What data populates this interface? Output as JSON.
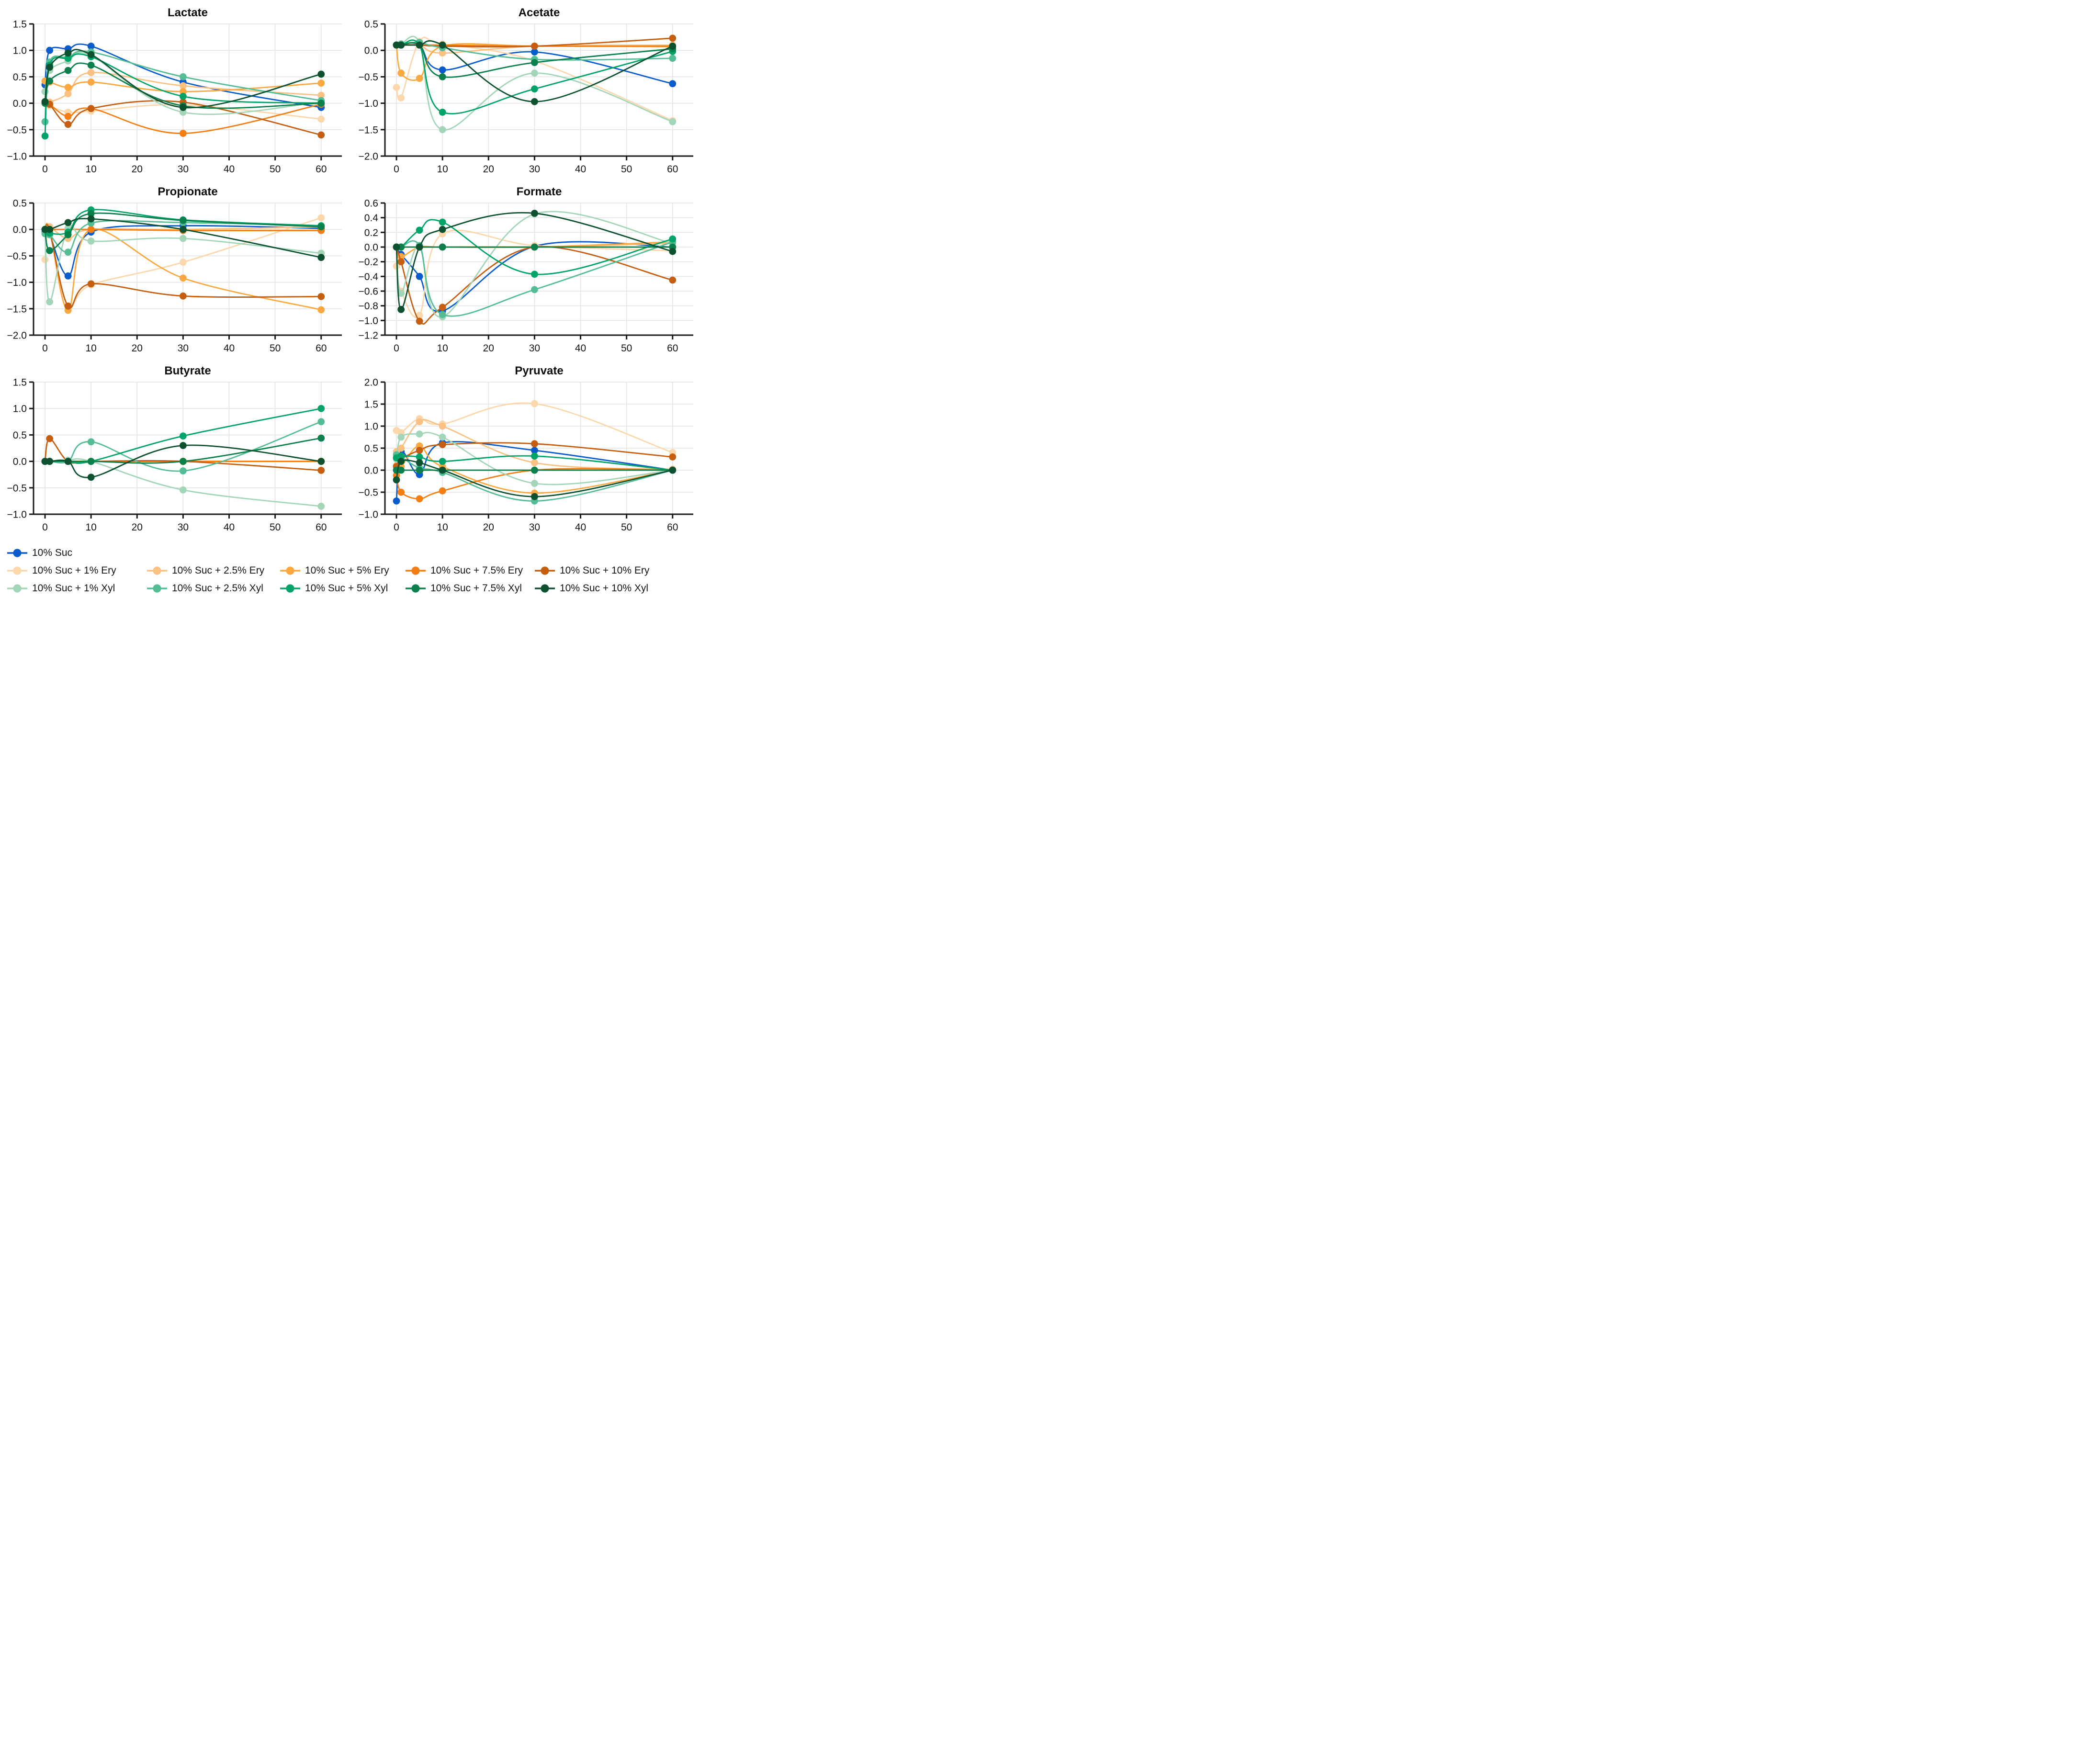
{
  "figure": {
    "kind": "small-multiples line figure",
    "x_time_points": [
      0,
      1,
      5,
      10,
      30,
      60
    ],
    "xticks": [
      0,
      10,
      20,
      30,
      40,
      50,
      60
    ]
  },
  "series_defs": [
    {
      "key": "suc10",
      "label": "10% Suc",
      "color": "#0a5bcb"
    },
    {
      "key": "ery1",
      "label": "10% Suc + 1% Ery",
      "color": "#fcd7ac"
    },
    {
      "key": "ery2_5",
      "label": "10% Suc + 2.5% Ery",
      "color": "#fac182"
    },
    {
      "key": "ery5",
      "label": "10% Suc + 5% Ery",
      "color": "#faa83f"
    },
    {
      "key": "ery7_5",
      "label": "10% Suc + 7.5% Ery",
      "color": "#f27e14"
    },
    {
      "key": "ery10",
      "label": "10% Suc + 10% Ery",
      "color": "#c55e11"
    },
    {
      "key": "xyl1",
      "label": "10% Suc + 1% Xyl",
      "color": "#a3d5b9"
    },
    {
      "key": "xyl2_5",
      "label": "10% Suc + 2.5% Xyl",
      "color": "#54bd95"
    },
    {
      "key": "xyl5",
      "label": "10% Suc + 5% Xyl",
      "color": "#00a468"
    },
    {
      "key": "xyl7_5",
      "label": "10% Suc + 7.5% Xyl",
      "color": "#0b804c"
    },
    {
      "key": "xyl10",
      "label": "10% Suc + 10% Xyl",
      "color": "#0d5130"
    }
  ],
  "legend": {
    "rows": [
      [
        "suc10"
      ],
      [
        "ery1",
        "ery2_5",
        "ery5",
        "ery7_5",
        "ery10"
      ],
      [
        "xyl1",
        "xyl2_5",
        "xyl5",
        "xyl7_5",
        "xyl10"
      ]
    ]
  },
  "style": {
    "grid_color": "#e4e4e4",
    "spine_color": "#1a1a1a",
    "tick_text_color": "#141414",
    "plot_bg": "#ffffff"
  },
  "chart_data": [
    {
      "type": "line",
      "title": "Lactate",
      "x": [
        0,
        1,
        5,
        10,
        30,
        60
      ],
      "xticks": [
        0,
        10,
        20,
        30,
        40,
        50,
        60
      ],
      "ylim": [
        -1.0,
        1.5
      ],
      "yticks": [
        -1.0,
        -0.5,
        0.0,
        0.5,
        1.0,
        1.5
      ],
      "grid": true,
      "series": [
        {
          "key": "suc10",
          "values": [
            0.35,
            1.0,
            1.03,
            1.08,
            0.4,
            -0.08
          ]
        },
        {
          "key": "ery1",
          "values": [
            0.0,
            -0.05,
            -0.17,
            -0.15,
            -0.03,
            -0.3
          ]
        },
        {
          "key": "ery2_5",
          "values": [
            0.0,
            0.02,
            0.18,
            0.58,
            0.33,
            0.15
          ]
        },
        {
          "key": "ery5",
          "values": [
            0.42,
            0.4,
            0.3,
            0.4,
            0.22,
            0.38
          ]
        },
        {
          "key": "ery7_5",
          "values": [
            0.0,
            -0.02,
            -0.25,
            -0.1,
            -0.57,
            -0.02
          ]
        },
        {
          "key": "ery10",
          "values": [
            0.02,
            -0.02,
            -0.4,
            -0.1,
            0.02,
            -0.6
          ]
        },
        {
          "key": "xyl1",
          "values": [
            0.22,
            0.62,
            0.8,
            0.9,
            -0.17,
            0.02
          ]
        },
        {
          "key": "xyl2_5",
          "values": [
            -0.35,
            0.78,
            0.87,
            0.97,
            0.5,
            0.05
          ]
        },
        {
          "key": "xyl5",
          "values": [
            -0.62,
            0.72,
            0.85,
            0.88,
            0.13,
            0.0
          ]
        },
        {
          "key": "xyl7_5",
          "values": [
            0.0,
            0.42,
            0.62,
            0.72,
            -0.05,
            0.0
          ]
        },
        {
          "key": "xyl10",
          "values": [
            0.03,
            0.68,
            0.95,
            0.92,
            -0.08,
            0.55
          ]
        }
      ]
    },
    {
      "type": "line",
      "title": "Acetate",
      "x": [
        0,
        1,
        5,
        10,
        30,
        60
      ],
      "xticks": [
        0,
        10,
        20,
        30,
        40,
        50,
        60
      ],
      "ylim": [
        -2.0,
        0.5
      ],
      "yticks": [
        -2.0,
        -1.5,
        -1.0,
        -0.5,
        0.0,
        0.5
      ],
      "grid": true,
      "series": [
        {
          "key": "suc10",
          "values": [
            0.1,
            0.12,
            0.1,
            -0.37,
            -0.03,
            -0.63
          ]
        },
        {
          "key": "ery1",
          "values": [
            -0.7,
            -0.9,
            0.17,
            0.12,
            -0.2,
            -1.33
          ]
        },
        {
          "key": "ery2_5",
          "values": [
            0.1,
            0.1,
            0.1,
            -0.05,
            0.08,
            0.1
          ]
        },
        {
          "key": "ery5",
          "values": [
            0.1,
            -0.43,
            -0.53,
            0.08,
            0.08,
            0.07
          ]
        },
        {
          "key": "ery7_5",
          "values": [
            0.1,
            0.1,
            0.1,
            0.1,
            0.08,
            0.08
          ]
        },
        {
          "key": "ery10",
          "values": [
            0.1,
            0.1,
            0.1,
            0.08,
            0.08,
            0.23
          ]
        },
        {
          "key": "xyl1",
          "values": [
            0.1,
            0.12,
            0.15,
            -1.5,
            -0.43,
            -1.35
          ]
        },
        {
          "key": "xyl2_5",
          "values": [
            0.1,
            0.12,
            0.15,
            0.05,
            -0.17,
            -0.15
          ]
        },
        {
          "key": "xyl5",
          "values": [
            0.1,
            0.1,
            0.1,
            -1.17,
            -0.73,
            -0.02
          ]
        },
        {
          "key": "xyl7_5",
          "values": [
            0.1,
            0.1,
            0.1,
            -0.5,
            -0.23,
            0.03
          ]
        },
        {
          "key": "xyl10",
          "values": [
            0.1,
            0.1,
            0.1,
            0.1,
            -0.97,
            0.08
          ]
        }
      ]
    },
    {
      "type": "line",
      "title": "Propionate",
      "x": [
        0,
        1,
        5,
        10,
        30,
        60
      ],
      "xticks": [
        0,
        10,
        20,
        30,
        40,
        50,
        60
      ],
      "ylim": [
        -2.0,
        0.5
      ],
      "yticks": [
        -2.0,
        -1.5,
        -1.0,
        -0.5,
        0.0,
        0.5
      ],
      "grid": true,
      "series": [
        {
          "key": "suc10",
          "values": [
            -0.05,
            -0.1,
            -0.88,
            -0.05,
            0.07,
            0.02
          ]
        },
        {
          "key": "ery1",
          "values": [
            -0.57,
            -0.1,
            -1.45,
            -1.05,
            -0.62,
            0.22
          ]
        },
        {
          "key": "ery2_5",
          "values": [
            0.0,
            0.05,
            -0.17,
            0.0,
            0.0,
            0.05
          ]
        },
        {
          "key": "ery5",
          "values": [
            0.0,
            0.0,
            -1.53,
            0.0,
            -0.92,
            -1.52
          ]
        },
        {
          "key": "ery7_5",
          "values": [
            0.0,
            0.0,
            0.0,
            0.0,
            -0.02,
            -0.02
          ]
        },
        {
          "key": "ery10",
          "values": [
            0.0,
            -0.02,
            -1.45,
            -1.03,
            -1.26,
            -1.27
          ]
        },
        {
          "key": "xyl1",
          "values": [
            0.0,
            -1.37,
            0.02,
            -0.22,
            -0.17,
            -0.45
          ]
        },
        {
          "key": "xyl2_5",
          "values": [
            -0.08,
            -0.1,
            -0.43,
            0.12,
            0.13,
            0.07
          ]
        },
        {
          "key": "xyl5",
          "values": [
            0.0,
            -0.07,
            -0.05,
            0.37,
            0.18,
            0.07
          ]
        },
        {
          "key": "xyl7_5",
          "values": [
            0.0,
            -0.4,
            -0.1,
            0.3,
            0.17,
            0.05
          ]
        },
        {
          "key": "xyl10",
          "values": [
            0.0,
            0.0,
            0.13,
            0.2,
            0.0,
            -0.53
          ]
        }
      ]
    },
    {
      "type": "line",
      "title": "Formate",
      "x": [
        0,
        1,
        5,
        10,
        30,
        60
      ],
      "xticks": [
        0,
        10,
        20,
        30,
        40,
        50,
        60
      ],
      "ylim": [
        -1.2,
        0.6
      ],
      "yticks": [
        -1.2,
        -1.0,
        -0.8,
        -0.6,
        -0.4,
        -0.2,
        0.0,
        0.2,
        0.4,
        0.6
      ],
      "grid": true,
      "series": [
        {
          "key": "suc10",
          "values": [
            0.0,
            -0.1,
            -0.4,
            -0.87,
            0.01,
            0.0
          ]
        },
        {
          "key": "ery1",
          "values": [
            -0.26,
            -0.6,
            -0.93,
            0.18,
            0.02,
            -0.05
          ]
        },
        {
          "key": "ery2_5",
          "values": [
            0.0,
            0.0,
            0.0,
            0.0,
            0.0,
            0.05
          ]
        },
        {
          "key": "ery5",
          "values": [
            0.0,
            -0.13,
            0.0,
            0.0,
            0.0,
            0.07
          ]
        },
        {
          "key": "ery7_5",
          "values": [
            0.0,
            0.0,
            0.0,
            0.0,
            0.0,
            0.0
          ]
        },
        {
          "key": "ery10",
          "values": [
            0.0,
            -0.2,
            -1.01,
            -0.82,
            0.0,
            -0.45
          ]
        },
        {
          "key": "xyl1",
          "values": [
            0.0,
            -0.63,
            0.02,
            -0.95,
            0.45,
            0.05
          ]
        },
        {
          "key": "xyl2_5",
          "values": [
            0.0,
            0.0,
            0.02,
            -0.92,
            -0.58,
            0.07
          ]
        },
        {
          "key": "xyl5",
          "values": [
            0.0,
            0.0,
            0.23,
            0.34,
            -0.37,
            0.11
          ]
        },
        {
          "key": "xyl7_5",
          "values": [
            0.0,
            0.0,
            0.0,
            0.0,
            0.0,
            0.0
          ]
        },
        {
          "key": "xyl10",
          "values": [
            0.0,
            -0.85,
            0.0,
            0.24,
            0.46,
            -0.06
          ]
        }
      ]
    },
    {
      "type": "line",
      "title": "Butyrate",
      "x": [
        0,
        1,
        5,
        10,
        30,
        60
      ],
      "xticks": [
        0,
        10,
        20,
        30,
        40,
        50,
        60
      ],
      "ylim": [
        -1.0,
        1.5
      ],
      "yticks": [
        -1.0,
        -0.5,
        0.0,
        0.5,
        1.0,
        1.5
      ],
      "grid": true,
      "series": [
        {
          "key": "suc10",
          "values": [
            0.0,
            0.0,
            0.0,
            0.0,
            0.0,
            0.0
          ]
        },
        {
          "key": "ery1",
          "values": [
            0.0,
            0.0,
            0.0,
            0.0,
            0.0,
            0.0
          ]
        },
        {
          "key": "ery2_5",
          "values": [
            0.0,
            0.0,
            0.0,
            0.0,
            0.0,
            0.0
          ]
        },
        {
          "key": "ery5",
          "values": [
            0.0,
            0.0,
            0.0,
            0.0,
            0.0,
            0.0
          ]
        },
        {
          "key": "ery7_5",
          "values": [
            0.0,
            0.0,
            0.0,
            0.0,
            0.0,
            0.0
          ]
        },
        {
          "key": "ery10",
          "values": [
            0.0,
            0.43,
            0.0,
            0.0,
            0.0,
            -0.17
          ]
        },
        {
          "key": "xyl1",
          "values": [
            0.0,
            0.0,
            0.02,
            0.0,
            -0.54,
            -0.85
          ]
        },
        {
          "key": "xyl2_5",
          "values": [
            0.0,
            0.0,
            0.0,
            0.37,
            -0.18,
            0.75
          ]
        },
        {
          "key": "xyl5",
          "values": [
            0.0,
            0.0,
            0.0,
            0.0,
            0.48,
            1.0
          ]
        },
        {
          "key": "xyl7_5",
          "values": [
            0.0,
            0.0,
            0.0,
            0.0,
            0.0,
            0.44
          ]
        },
        {
          "key": "xyl10",
          "values": [
            0.0,
            0.0,
            0.0,
            -0.3,
            0.3,
            0.0
          ]
        }
      ]
    },
    {
      "type": "line",
      "title": "Pyruvate",
      "x": [
        0,
        1,
        5,
        10,
        30,
        60
      ],
      "xticks": [
        0,
        10,
        20,
        30,
        40,
        50,
        60
      ],
      "ylim": [
        -1.0,
        2.0
      ],
      "yticks": [
        -1.0,
        -0.5,
        0.0,
        0.5,
        1.0,
        1.5,
        2.0
      ],
      "grid": true,
      "series": [
        {
          "key": "suc10",
          "values": [
            -0.7,
            0.42,
            -0.1,
            0.62,
            0.45,
            0.0
          ]
        },
        {
          "key": "ery1",
          "values": [
            0.9,
            0.85,
            1.17,
            1.05,
            1.51,
            0.4
          ]
        },
        {
          "key": "ery2_5",
          "values": [
            0.42,
            0.5,
            1.1,
            1.0,
            0.17,
            0.02
          ]
        },
        {
          "key": "ery5",
          "values": [
            0.1,
            0.08,
            0.55,
            0.08,
            -0.52,
            0.0
          ]
        },
        {
          "key": "ery7_5",
          "values": [
            -0.12,
            -0.5,
            -0.65,
            -0.47,
            0.0,
            0.0
          ]
        },
        {
          "key": "ery10",
          "values": [
            0.08,
            0.25,
            0.45,
            0.58,
            0.6,
            0.3
          ]
        },
        {
          "key": "xyl1",
          "values": [
            0.25,
            0.75,
            0.82,
            0.75,
            -0.3,
            0.0
          ]
        },
        {
          "key": "xyl2_5",
          "values": [
            0.35,
            0.3,
            0.05,
            -0.05,
            -0.7,
            0.0
          ]
        },
        {
          "key": "xyl5",
          "values": [
            0.28,
            0.32,
            0.3,
            0.2,
            0.32,
            0.0
          ]
        },
        {
          "key": "xyl7_5",
          "values": [
            0.0,
            0.0,
            0.0,
            0.0,
            0.0,
            0.0
          ]
        },
        {
          "key": "xyl10",
          "values": [
            -0.22,
            0.2,
            0.17,
            0.0,
            -0.6,
            0.0
          ]
        }
      ]
    }
  ]
}
